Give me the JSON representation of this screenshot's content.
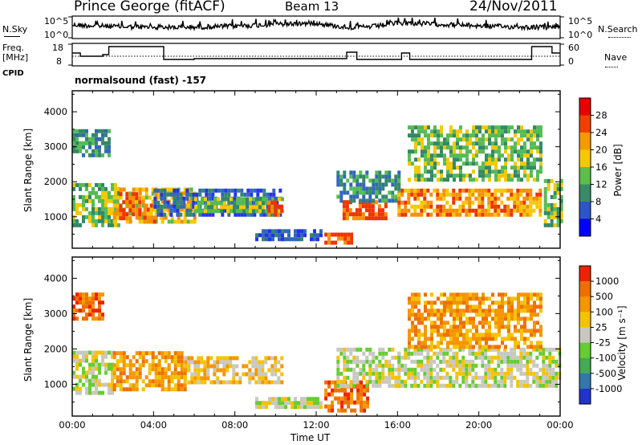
{
  "header": {
    "station": "Prince George (fitACF)",
    "beam": "Beam 13",
    "date": "24/Nov/2011"
  },
  "side_labels": {
    "nsky": "N.Sky",
    "nsearch": "N.Search",
    "freq_line1": "Freq.",
    "freq_line2": "[MHz]",
    "nave": "Nave",
    "cpid": "CPID"
  },
  "noise_axis": {
    "top": "10^5",
    "bottom": "10^0",
    "right_top": "10^5",
    "right_bottom": "10^0"
  },
  "freq_axis": {
    "top": "18",
    "bottom": "8",
    "right_top": "60",
    "right_bottom": "0"
  },
  "cpid_text": "normalsound (fast) -157",
  "xaxis": {
    "label": "Time UT",
    "ticks": [
      "00:00",
      "04:00",
      "08:00",
      "12:00",
      "16:00",
      "20:00",
      "00:00"
    ]
  },
  "panels": {
    "power": {
      "ylabel": "Slant Range [km]",
      "cb_label": "Power [dB]",
      "cb_ticks": [
        "28",
        "24",
        "20",
        "16",
        "12",
        "8",
        "4"
      ]
    },
    "velocity": {
      "ylabel": "Slant Range [km]",
      "cb_label": "Velocity [m s⁻¹]",
      "cb_ticks": [
        "1000",
        "500",
        "100",
        "25",
        "-25",
        "-100",
        "-500",
        "-1000"
      ]
    }
  },
  "chart_data": [
    {
      "type": "heatmap",
      "title": "Power",
      "x_unit": "hours UT",
      "xlim": [
        0,
        24
      ],
      "ylim": [
        100,
        4600
      ],
      "ylabel": "Slant Range [km]",
      "xlabel": "Time UT",
      "yticks": [
        1000,
        2000,
        3000,
        4000
      ],
      "colorbar": {
        "label": "Power [dB]",
        "range": [
          0,
          32
        ],
        "ticks": [
          4,
          8,
          12,
          16,
          20,
          24,
          28
        ]
      },
      "colors": [
        "#2233ee",
        "#3366bb",
        "#338866",
        "#55bb55",
        "#f5c800",
        "#f59000",
        "#ee3300"
      ],
      "regions": [
        {
          "t0": 0.0,
          "t1": 2.3,
          "r0": 700,
          "r1": 1900,
          "level": 3
        },
        {
          "t0": 2.0,
          "t1": 6.0,
          "r0": 800,
          "r1": 1800,
          "level": 4
        },
        {
          "t0": 2.3,
          "t1": 3.4,
          "r0": 900,
          "r1": 1600,
          "level": 6
        },
        {
          "t0": 3.5,
          "t1": 4.3,
          "r0": 800,
          "r1": 1300,
          "level": 5
        },
        {
          "t0": 4.0,
          "t1": 10.3,
          "r0": 1000,
          "r1": 1700,
          "level": 1
        },
        {
          "t0": 6.0,
          "t1": 10.3,
          "r0": 1100,
          "r1": 1550,
          "level": 3
        },
        {
          "t0": 9.6,
          "t1": 10.3,
          "r0": 1000,
          "r1": 1400,
          "level": 6
        },
        {
          "t0": 9.0,
          "t1": 12.3,
          "r0": 300,
          "r1": 600,
          "level": 1
        },
        {
          "t0": 12.4,
          "t1": 13.8,
          "r0": 200,
          "r1": 450,
          "level": 6
        },
        {
          "t0": 13.3,
          "t1": 15.5,
          "r0": 900,
          "r1": 1400,
          "level": 6
        },
        {
          "t0": 13.0,
          "t1": 16.0,
          "r0": 1400,
          "r1": 2300,
          "level": 2
        },
        {
          "t0": 16.0,
          "t1": 23.0,
          "r0": 1000,
          "r1": 1800,
          "level": 5
        },
        {
          "t0": 16.5,
          "t1": 23.0,
          "r0": 2000,
          "r1": 3500,
          "level": 3
        },
        {
          "t0": 0.0,
          "t1": 1.8,
          "r0": 2700,
          "r1": 3500,
          "level": 2
        },
        {
          "t0": 23.2,
          "t1": 24.0,
          "r0": 700,
          "r1": 2000,
          "level": 3
        }
      ]
    },
    {
      "type": "heatmap",
      "title": "Velocity",
      "x_unit": "hours UT",
      "xlim": [
        0,
        24
      ],
      "ylim": [
        100,
        4600
      ],
      "ylabel": "Slant Range [km]",
      "xlabel": "Time UT",
      "yticks": [
        1000,
        2000,
        3000,
        4000
      ],
      "colorbar": {
        "label": "Velocity [m s⁻¹]",
        "ticks": [
          1000,
          500,
          100,
          25,
          -25,
          -100,
          -500,
          -1000
        ]
      },
      "colors": [
        "#2233cc",
        "#3377aa",
        "#44aa55",
        "#66cc33",
        "#c8c8c0",
        "#f5c200",
        "#f59500",
        "#ee7000",
        "#ee2200"
      ],
      "regions": [
        {
          "t0": 0.0,
          "t1": 2.0,
          "r0": 700,
          "r1": 1900,
          "level": 4
        },
        {
          "t0": 2.0,
          "t1": 5.5,
          "r0": 800,
          "r1": 1900,
          "level": 6
        },
        {
          "t0": 5.5,
          "t1": 10.3,
          "r0": 1000,
          "r1": 1700,
          "level": 5
        },
        {
          "t0": 9.0,
          "t1": 12.3,
          "r0": 300,
          "r1": 600,
          "level": 4
        },
        {
          "t0": 12.4,
          "t1": 14.5,
          "r0": 200,
          "r1": 1000,
          "level": 7
        },
        {
          "t0": 13.0,
          "t1": 16.0,
          "r0": 900,
          "r1": 2000,
          "level": 4
        },
        {
          "t0": 16.0,
          "t1": 24.0,
          "r0": 900,
          "r1": 2000,
          "level": 4
        },
        {
          "t0": 16.5,
          "t1": 23.0,
          "r0": 2000,
          "r1": 3500,
          "level": 6
        },
        {
          "t0": 0.0,
          "t1": 1.5,
          "r0": 2800,
          "r1": 3500,
          "level": 7
        }
      ]
    }
  ],
  "colors": {
    "power_scale": [
      "#0000ff",
      "#2e55c8",
      "#3a8a6a",
      "#5cbf4a",
      "#f6c800",
      "#f59a00",
      "#f04000",
      "#e80000"
    ],
    "velocity_scale": [
      "#2233cc",
      "#3377aa",
      "#44aa55",
      "#66cc33",
      "#c8c8c0",
      "#f5c200",
      "#f59500",
      "#ee7000",
      "#ee2200"
    ]
  }
}
